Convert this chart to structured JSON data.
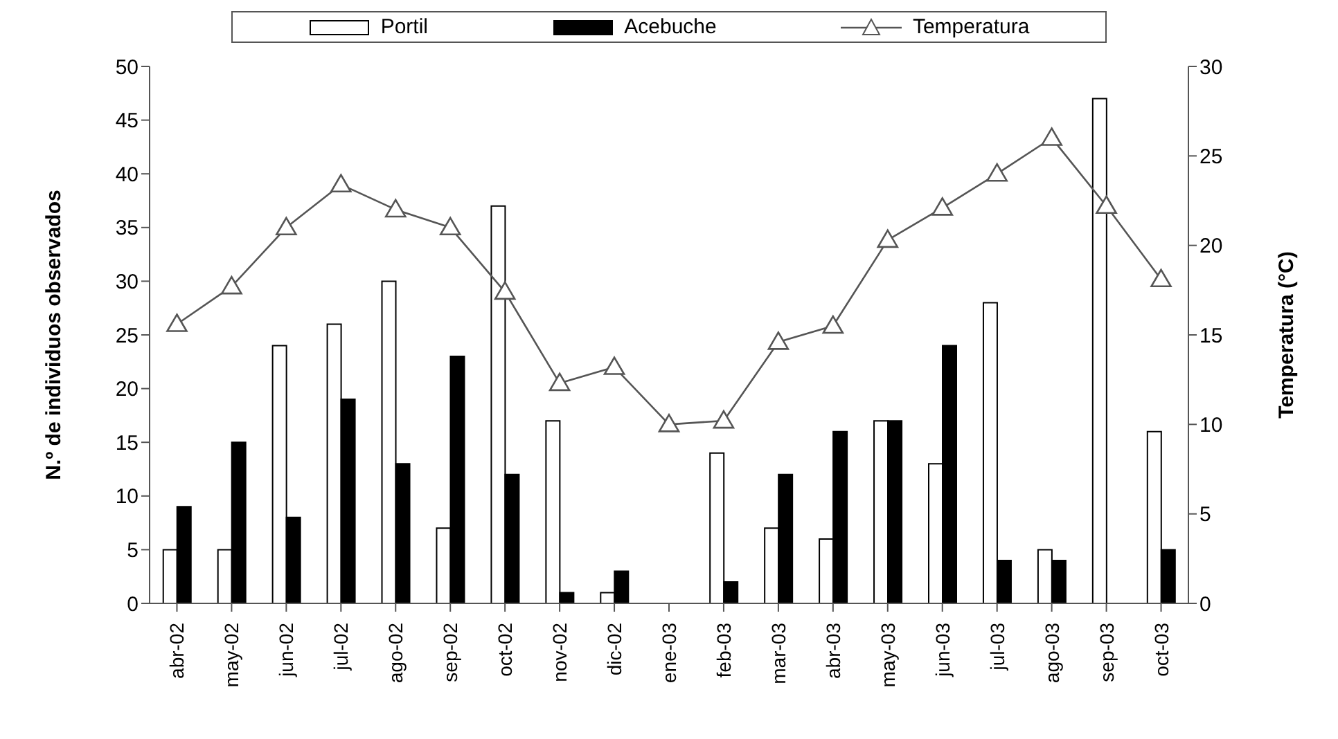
{
  "chart_data": {
    "type": "bar",
    "ylabel": "N.º de individuos observados",
    "y2label": "Temperatura (°C)",
    "categories": [
      "abr-02",
      "may-02",
      "jun-02",
      "jul-02",
      "ago-02",
      "sep-02",
      "oct-02",
      "nov-02",
      "dic-02",
      "ene-03",
      "feb-03",
      "mar-03",
      "abr-03",
      "may-03",
      "jun-03",
      "jul-03",
      "ago-03",
      "sep-03",
      "oct-03"
    ],
    "series": [
      {
        "name": "Portil",
        "color": "#ffffff",
        "values": [
          5,
          5,
          24,
          26,
          30,
          7,
          37,
          17,
          1,
          0,
          14,
          7,
          6,
          17,
          13,
          28,
          5,
          47,
          16
        ]
      },
      {
        "name": "Acebuche",
        "color": "#000000",
        "values": [
          9,
          15,
          8,
          19,
          13,
          23,
          12,
          1,
          3,
          0,
          2,
          12,
          16,
          17,
          24,
          4,
          4,
          0,
          5
        ]
      },
      {
        "name": "Temperatura",
        "type": "line",
        "axis": "y2",
        "color": "#555555",
        "marker": "triangle",
        "values": [
          15.6,
          17.7,
          21,
          23.4,
          22,
          21,
          17.4,
          12.3,
          13.2,
          10,
          10.2,
          14.6,
          15.5,
          20.3,
          22.1,
          24,
          26,
          22.2,
          18.1
        ]
      }
    ],
    "ylim": [
      0,
      50
    ],
    "yticks": [
      0,
      5,
      10,
      15,
      20,
      25,
      30,
      35,
      40,
      45,
      50
    ],
    "y2lim": [
      0,
      30
    ],
    "y2ticks": [
      0,
      5,
      10,
      15,
      20,
      25,
      30
    ],
    "grid": false,
    "legend": "top"
  }
}
